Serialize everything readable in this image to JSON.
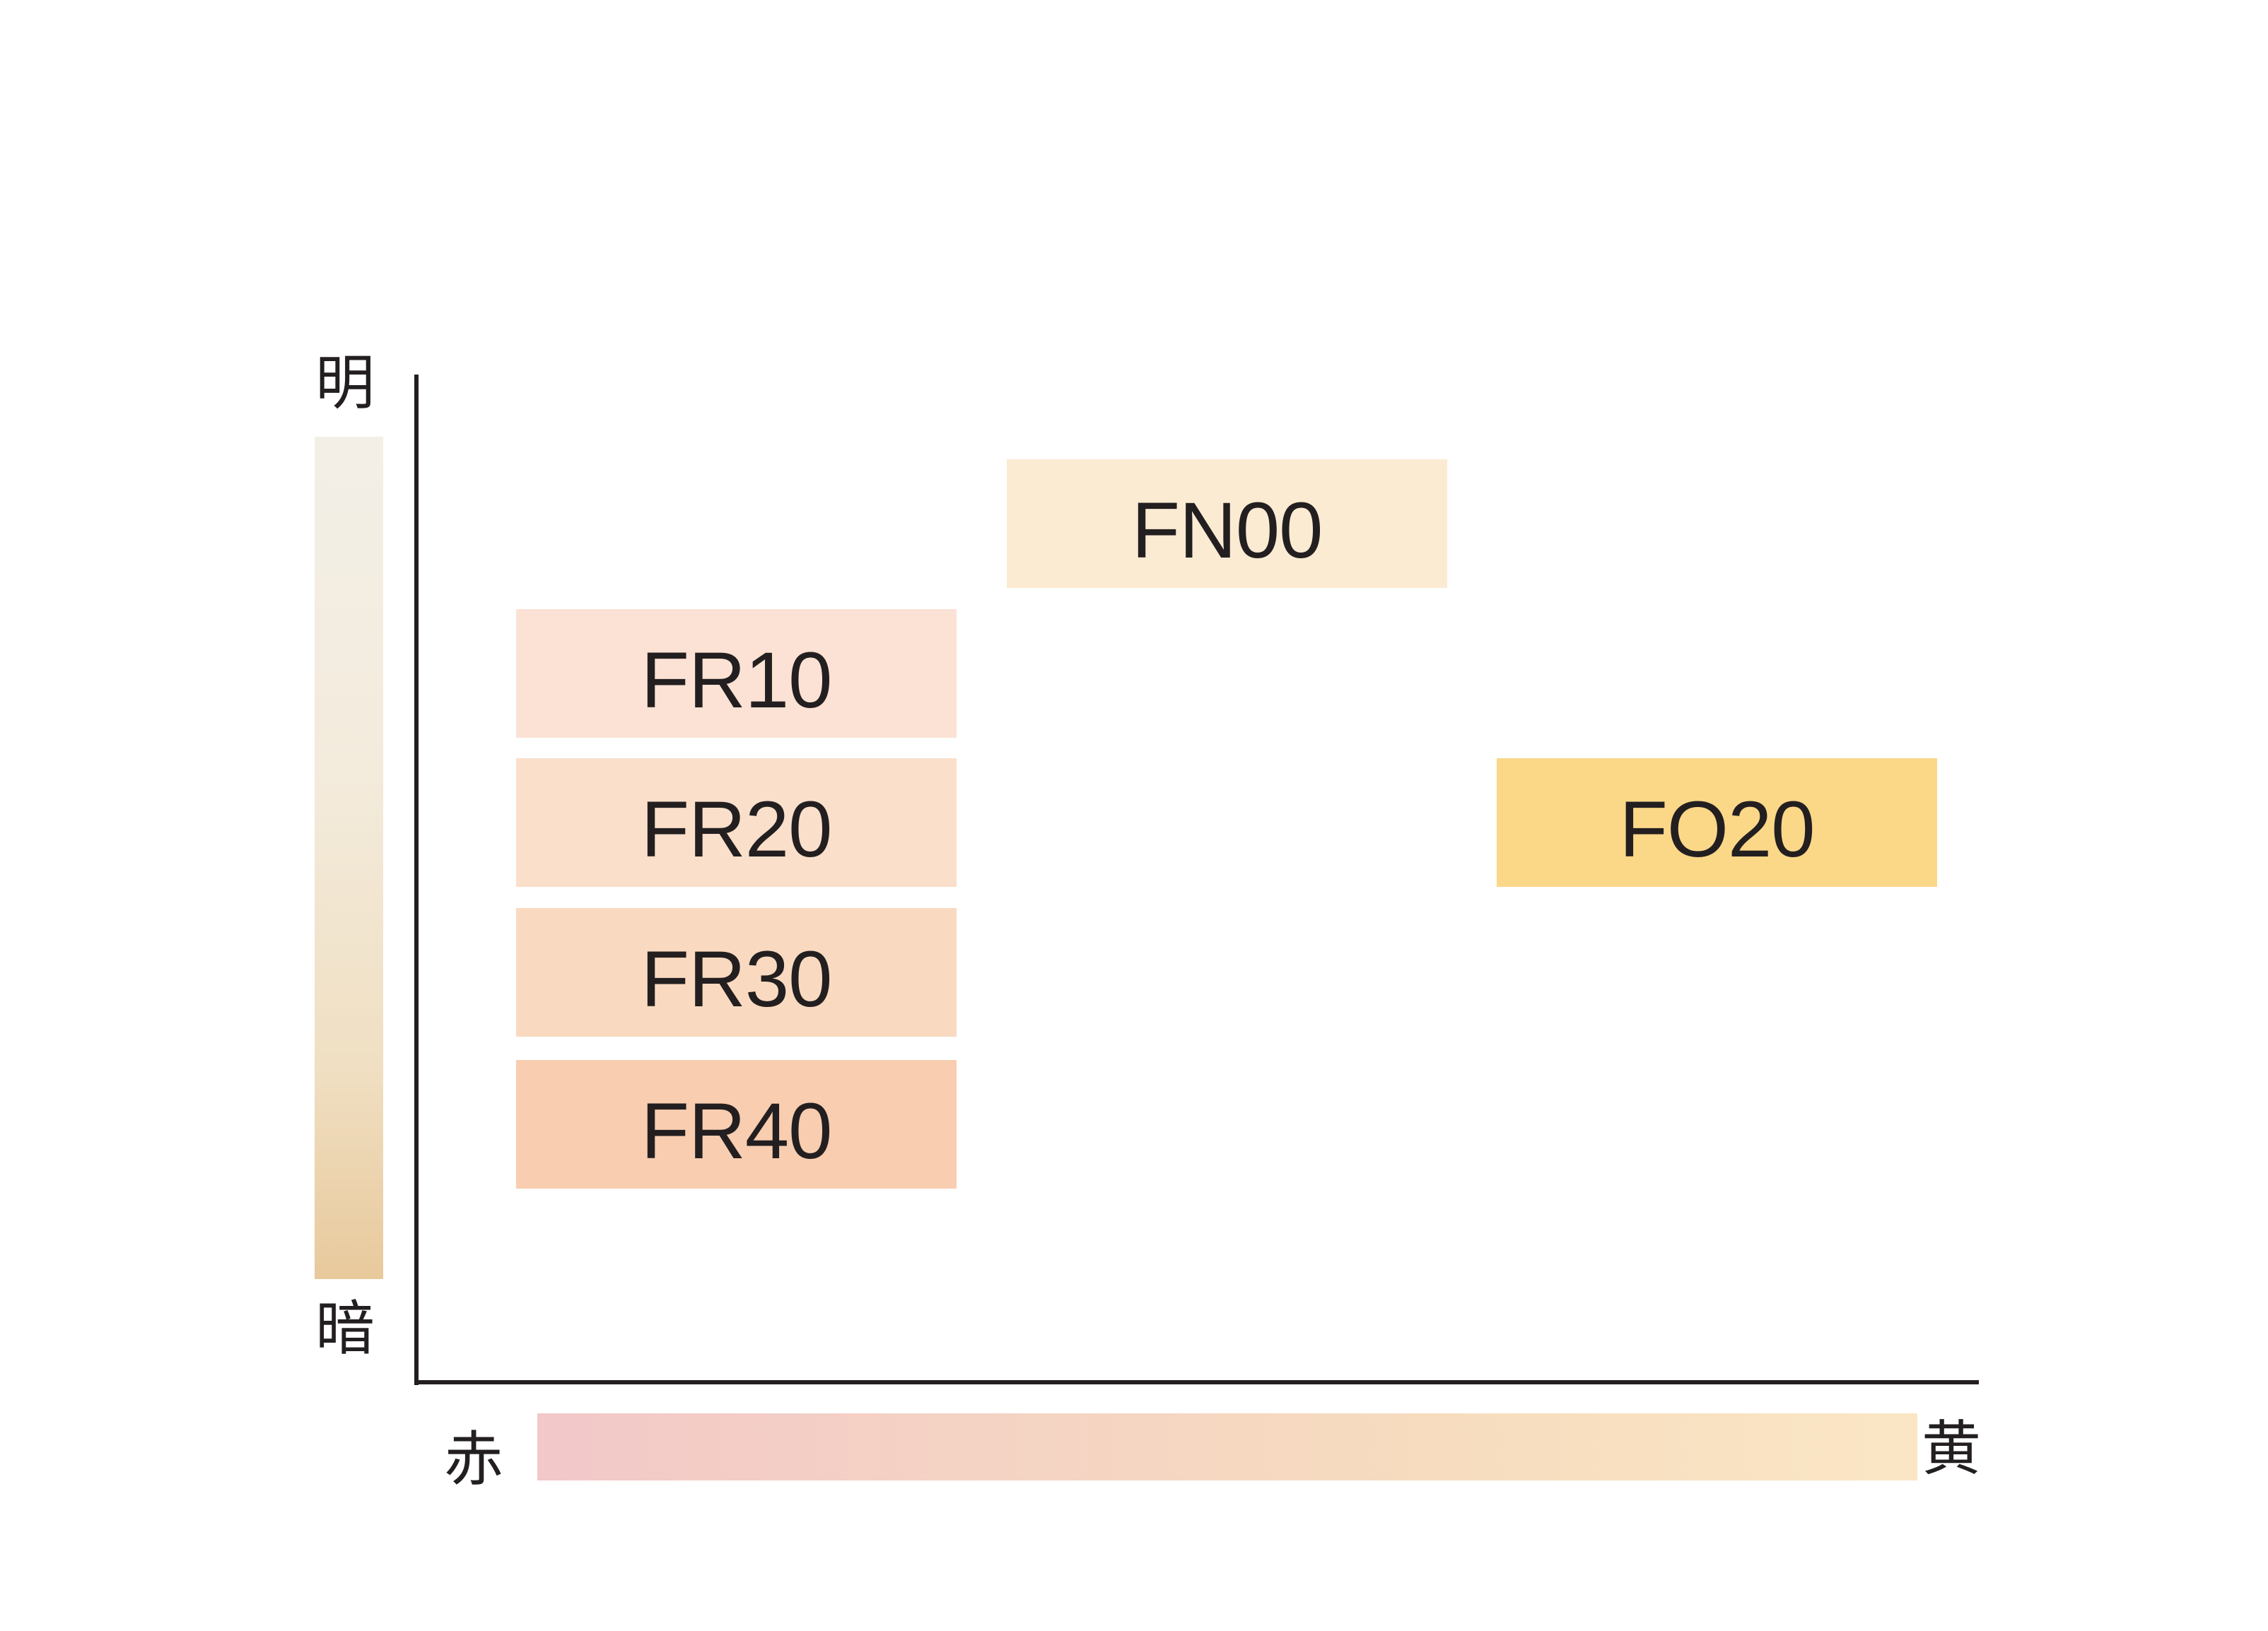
{
  "axes": {
    "y_top_label": "明",
    "y_bottom_label": "暗",
    "x_left_label": "赤",
    "x_right_label": "黄"
  },
  "gradients": {
    "brightness_bar": [
      "#f3efe7",
      "#e8c99c"
    ],
    "hue_bar": [
      "#f2c8c8",
      "#fae6c4"
    ]
  },
  "shades": [
    {
      "code": "FN00",
      "color": "#fbebd2"
    },
    {
      "code": "FR10",
      "color": "#fbe2d4"
    },
    {
      "code": "FR20",
      "color": "#fadfcb"
    },
    {
      "code": "FO20",
      "color": "#fbd788"
    },
    {
      "code": "FR30",
      "color": "#f9dac0"
    },
    {
      "code": "FR40",
      "color": "#f8cdb0"
    }
  ]
}
